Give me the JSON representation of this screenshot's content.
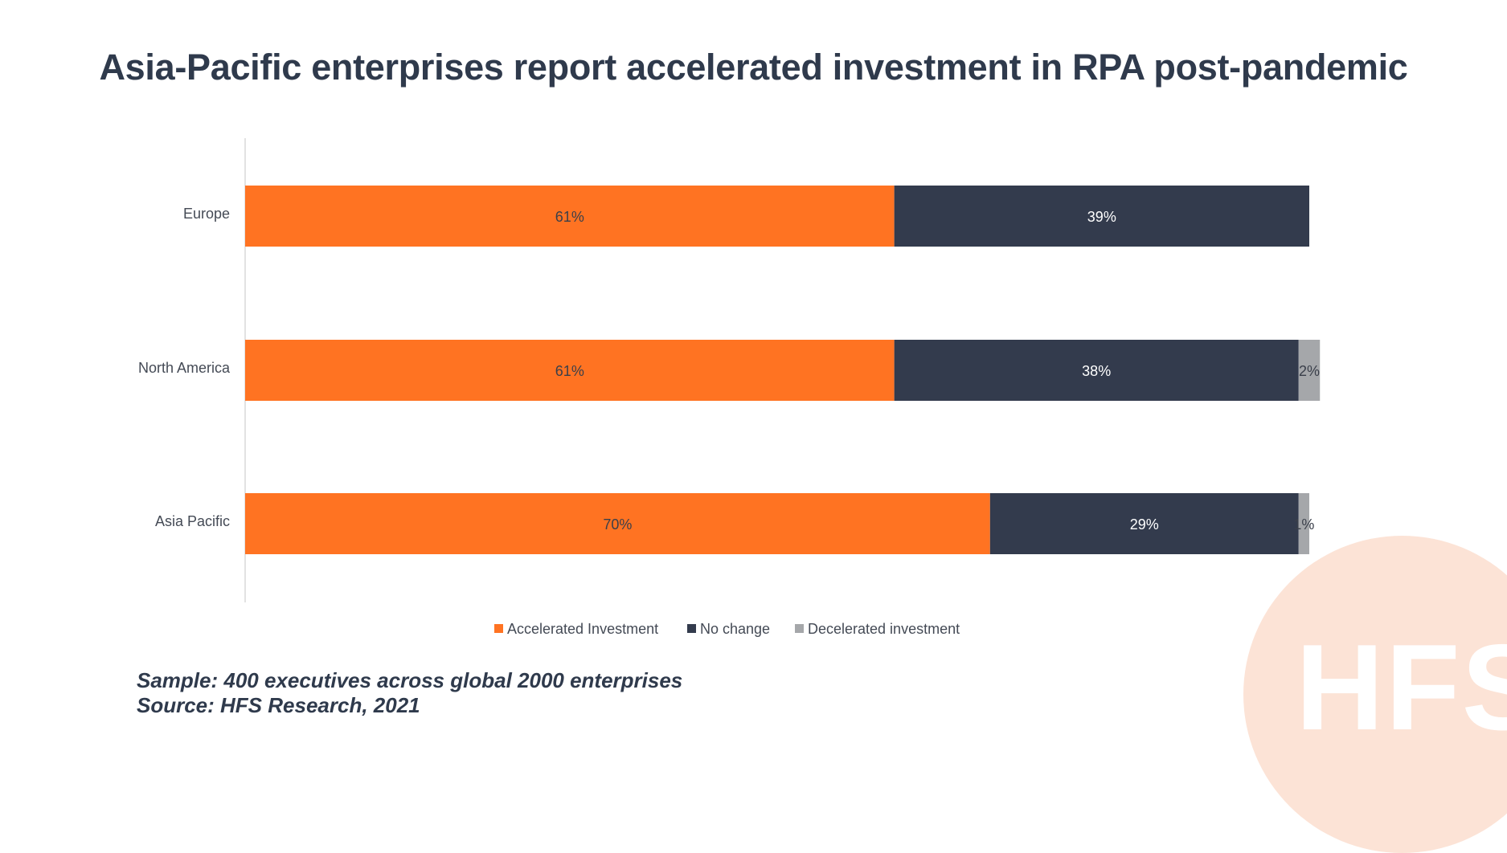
{
  "title": "Asia-Pacific enterprises report accelerated investment in RPA post-pandemic",
  "footnote": {
    "sample": "Sample: 400 executives across global 2000 enterprises",
    "source": "Source: HFS Research, 2021"
  },
  "watermark": "HFS",
  "chart_data": {
    "type": "bar",
    "orientation": "horizontal",
    "stacked": true,
    "title": "",
    "xlabel": "",
    "ylabel": "",
    "categories": [
      "Europe",
      "North America",
      "Asia Pacific"
    ],
    "series": [
      {
        "name": "Accelerated Investment",
        "values": [
          61,
          61,
          70
        ],
        "labels": [
          "61%",
          "61%",
          "70%"
        ],
        "color": "#ff7322",
        "label_color": "#3a3f4a"
      },
      {
        "name": "No change",
        "values": [
          39,
          38,
          29
        ],
        "labels": [
          "39%",
          "38%",
          "29%"
        ],
        "color": "#333b4d",
        "label_color": "#ffffff"
      },
      {
        "name": "Decelerated investment",
        "values": [
          0,
          2,
          1
        ],
        "labels": [
          "",
          "2%",
          "1%"
        ],
        "color": "#a5a7aa",
        "label_color": "#3a3f4a"
      }
    ],
    "xlim": [
      0,
      100
    ],
    "grid": false,
    "legend_position": "bottom"
  }
}
